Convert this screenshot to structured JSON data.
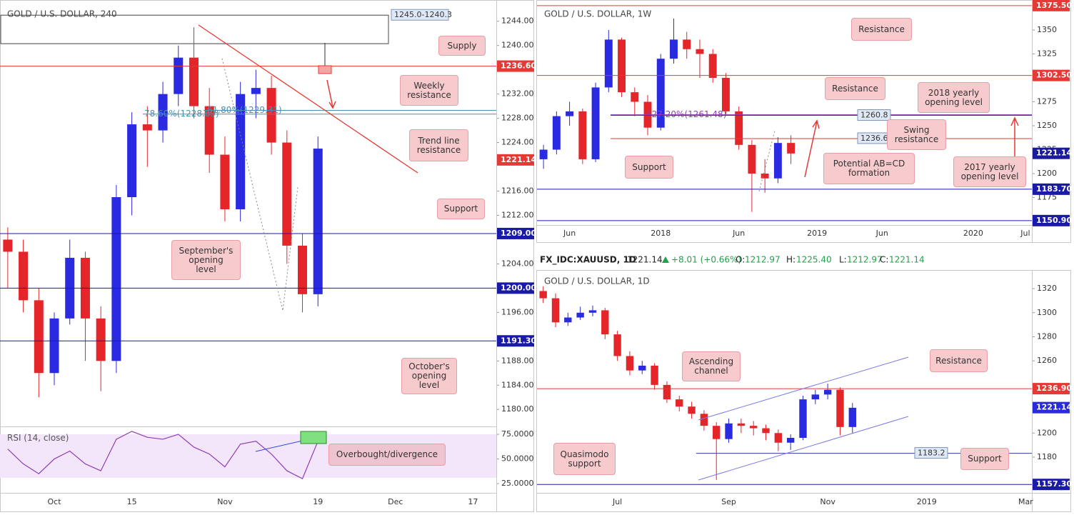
{
  "chart_data": [
    {
      "type": "candlestick",
      "title": "GOLD / U.S. DOLLAR, 240",
      "categories": [
        null,
        null,
        null,
        "Oct",
        null,
        null,
        null,
        null,
        "15",
        null,
        null,
        null,
        null,
        null,
        "Nov",
        null,
        null,
        null,
        null,
        null,
        "19",
        null,
        null,
        null,
        null,
        "Dec",
        null,
        null,
        null,
        null,
        "17",
        null
      ],
      "open": [
        1208,
        1206,
        1198,
        1186,
        1195,
        1205,
        1195,
        1188,
        1215,
        1227,
        1226,
        1232,
        1238,
        1230,
        1222,
        1213,
        1232,
        1233,
        1224,
        1207,
        1199,
        null,
        null,
        null,
        null,
        null,
        null,
        null,
        null,
        null,
        null,
        null
      ],
      "high": [
        1210,
        1208,
        1200,
        1196,
        1208,
        1206,
        1197,
        1217,
        1229,
        1230,
        1234,
        1240,
        1243,
        1233,
        1225,
        1234,
        1236,
        1235,
        1226,
        1209,
        1225,
        null,
        null,
        null,
        null,
        null,
        null,
        null,
        null,
        null,
        null,
        null
      ],
      "low": [
        1200,
        1196,
        1182,
        1184,
        1194,
        1188,
        1183,
        1186,
        1212,
        1220,
        1224,
        1230,
        1228,
        1219,
        1211,
        1211,
        1228,
        1222,
        1204,
        1196,
        1197,
        null,
        null,
        null,
        null,
        null,
        null,
        null,
        null,
        null,
        null,
        null
      ],
      "close": [
        1206,
        1198,
        1186,
        1195,
        1205,
        1195,
        1188,
        1215,
        1227,
        1226,
        1232,
        1238,
        1230,
        1222,
        1213,
        1232,
        1233,
        1224,
        1207,
        1199,
        1223,
        null,
        null,
        null,
        null,
        null,
        null,
        null,
        null,
        null,
        null,
        null
      ],
      "up_color": "#2a2ae0",
      "down_color": "#e4262b",
      "ylim": [
        1177.2,
        1247.5
      ],
      "yticks": [
        {
          "value": 1180,
          "label": "1180.00"
        },
        {
          "value": 1184,
          "label": "1184.00"
        },
        {
          "value": 1188,
          "label": "1188.00"
        },
        {
          "value": 1196,
          "label": "1196.00"
        },
        {
          "value": 1204,
          "label": "1204.00"
        },
        {
          "value": 1212,
          "label": "1212.00"
        },
        {
          "value": 1216,
          "label": "1216.00"
        },
        {
          "value": 1224,
          "label": "1224.00"
        },
        {
          "value": 1228,
          "label": "1228.00"
        },
        {
          "value": 1232,
          "label": "1232.00"
        },
        {
          "value": 1240,
          "label": "1240.00"
        },
        {
          "value": 1244,
          "label": "1244.00"
        }
      ],
      "zone": {
        "low": 1240.3,
        "high": 1245.0,
        "label": "1245.0-1240.3"
      },
      "levels": [
        {
          "value": 1236.6,
          "label": "1236.60",
          "color": "#e53935",
          "tag": "axis",
          "line": true
        },
        {
          "value": 1228.69,
          "label": "78.60%(1228.69)",
          "color": "#4a8fb0",
          "tag": "inline",
          "line": true
        },
        {
          "value": 1229.31,
          "label": "61.80%(1229.31)",
          "color": "#4a8fb0",
          "tag": "inline",
          "line": true
        },
        {
          "value": 1221.14,
          "label": "1221.14",
          "color": "#e53935",
          "tag": "axis",
          "line": false
        },
        {
          "value": 1209,
          "label": "1209.00",
          "color": "#1a1aa8",
          "tag": "axis",
          "line": true
        },
        {
          "value": 1200,
          "label": "1200.00",
          "color": "#1a1aa8",
          "tag": "axis",
          "line": true
        },
        {
          "value": 1191.3,
          "label": "1191.30",
          "color": "#1a1aa8",
          "tag": "axis",
          "line": true
        }
      ],
      "annotations": [
        "Supply",
        "Weekly resistance",
        "Trend line resistance",
        "Support",
        "September's opening level",
        "October's opening level",
        "Overbought/divergence"
      ],
      "rsi": {
        "label": "RSI (14, close)",
        "color": "#8e3fb5",
        "values": [
          60,
          45,
          35,
          50,
          58,
          45,
          38,
          70,
          78,
          72,
          70,
          75,
          62,
          55,
          42,
          65,
          68,
          55,
          38,
          30,
          68,
          null,
          null,
          null,
          null,
          null,
          null,
          null,
          null,
          null,
          null,
          null
        ],
        "ylim": [
          15.6,
          83
        ],
        "yticks": [
          {
            "value": 75,
            "label": "75.0000"
          },
          {
            "value": 50,
            "label": "50.0000"
          },
          {
            "value": 25,
            "label": "25.0000"
          }
        ]
      }
    },
    {
      "type": "candlestick",
      "title": "GOLD / U.S. DOLLAR, 1W",
      "categories": [
        null,
        null,
        "Jun",
        null,
        null,
        null,
        null,
        null,
        null,
        "2018",
        null,
        null,
        null,
        null,
        null,
        "Jun",
        null,
        null,
        null,
        null,
        null,
        "2019",
        null,
        null,
        null,
        null,
        "Jun",
        null,
        null,
        null,
        null,
        null,
        null,
        "2020",
        null,
        null,
        null,
        "Jul"
      ],
      "open": [
        1215,
        1225,
        1260,
        1265,
        1215,
        1290,
        1340,
        1285,
        1275,
        1248,
        1320,
        1340,
        1330,
        1325,
        1300,
        1265,
        1230,
        1200,
        1195,
        1232,
        null,
        null,
        null,
        null,
        null,
        null,
        null,
        null,
        null,
        null,
        null,
        null,
        null,
        null,
        null,
        null,
        null,
        null
      ],
      "high": [
        1230,
        1265,
        1275,
        1268,
        1295,
        1350,
        1342,
        1290,
        1282,
        1325,
        1362,
        1348,
        1340,
        1330,
        1305,
        1270,
        1235,
        1215,
        1238,
        1240,
        null,
        null,
        null,
        null,
        null,
        null,
        null,
        null,
        null,
        null,
        null,
        null,
        null,
        null,
        null,
        null,
        null,
        null
      ],
      "low": [
        1205,
        1220,
        1250,
        1210,
        1212,
        1285,
        1280,
        1260,
        1240,
        1245,
        1315,
        1320,
        1300,
        1295,
        1262,
        1225,
        1160,
        1180,
        1190,
        1210,
        null,
        null,
        null,
        null,
        null,
        null,
        null,
        null,
        null,
        null,
        null,
        null,
        null,
        null,
        null,
        null,
        null,
        null
      ],
      "close": [
        1225,
        1260,
        1265,
        1215,
        1290,
        1340,
        1285,
        1275,
        1248,
        1320,
        1340,
        1330,
        1325,
        1300,
        1265,
        1230,
        1200,
        1195,
        1232,
        1221,
        null,
        null,
        null,
        null,
        null,
        null,
        null,
        null,
        null,
        null,
        null,
        null,
        null,
        null,
        null,
        null,
        null,
        null
      ],
      "up_color": "#2a2ae0",
      "down_color": "#e4262b",
      "ylim": [
        1146.3,
        1377.6
      ],
      "yticks": [
        1175,
        1200,
        1225,
        1250,
        1275,
        1325,
        1350
      ],
      "levels": [
        {
          "value": 1375.5,
          "label": "1375.50",
          "color": "#e53935",
          "tag": "axis",
          "line": true
        },
        {
          "value": 1302.5,
          "label": "1302.50",
          "color": "#e53935",
          "tag": "axis",
          "line": true
        },
        {
          "value": 1261.48,
          "label": "127.20%(1261.48)",
          "color": "#8e3fb5",
          "tag": "inline",
          "line": true
        },
        {
          "value": 1260.8,
          "label": "1260.8",
          "color": "#2f3f9e",
          "tag": "inline",
          "line": true
        },
        {
          "value": 1236.6,
          "label": "1236.6",
          "color": "#e53935",
          "tag": "inline",
          "line": true
        },
        {
          "value": 1221.14,
          "label": "1221.14",
          "color": "#1a1a9e",
          "tag": "axis",
          "line": false
        },
        {
          "value": 1183.7,
          "label": "1183.70",
          "color": "#1a1aa8",
          "tag": "axis",
          "line": true
        },
        {
          "value": 1150.9,
          "label": "1150.90",
          "color": "#1a1aa8",
          "tag": "axis",
          "line": true
        }
      ],
      "annotations": [
        "Resistance",
        "Resistance",
        "2018 yearly opening level",
        "Swing resistance",
        "Potential AB=CD formation",
        "Support",
        "2017 yearly opening level"
      ]
    },
    {
      "type": "candlestick",
      "title": "GOLD / U.S. DOLLAR, 1D",
      "info": {
        "symbol": "FX_IDC:XAUUSD, 1D",
        "last": "1221.14",
        "change": "+8.01 (+0.66%)",
        "o_label": "O:",
        "o": "1212.97",
        "h_label": "H:",
        "h": "1225.40",
        "l_label": "L:",
        "l": "1212.97",
        "c_label": "C:",
        "c": "1221.14"
      },
      "categories": [
        null,
        null,
        null,
        null,
        null,
        null,
        "Jul",
        null,
        null,
        null,
        null,
        null,
        null,
        null,
        null,
        "Sep",
        null,
        null,
        null,
        null,
        null,
        null,
        null,
        "Nov",
        null,
        null,
        null,
        null,
        null,
        null,
        null,
        "2019",
        null,
        null,
        null,
        null,
        null,
        null,
        null,
        "Mar"
      ],
      "open": [
        1318,
        1312,
        1292,
        1296,
        1300,
        1302,
        1282,
        1264,
        1252,
        1256,
        1240,
        1228,
        1222,
        1216,
        1206,
        1195,
        1208,
        1206,
        1204,
        1200,
        1192,
        1196,
        1228,
        1232,
        1236,
        1205,
        null,
        null,
        null,
        null,
        null,
        null,
        null,
        null,
        null,
        null,
        null,
        null,
        null,
        null
      ],
      "high": [
        1322,
        1316,
        1300,
        1305,
        1306,
        1304,
        1285,
        1268,
        1260,
        1258,
        1243,
        1231,
        1226,
        1219,
        1209,
        1212,
        1212,
        1210,
        1207,
        1203,
        1199,
        1231,
        1236,
        1241,
        1238,
        1225,
        null,
        null,
        null,
        null,
        null,
        null,
        null,
        null,
        null,
        null,
        null,
        null,
        null,
        null
      ],
      "low": [
        1308,
        1288,
        1289,
        1294,
        1297,
        1278,
        1260,
        1248,
        1249,
        1236,
        1225,
        1218,
        1212,
        1202,
        1161,
        1192,
        1200,
        1198,
        1194,
        1185,
        1186,
        1194,
        1224,
        1228,
        1198,
        1200,
        null,
        null,
        null,
        null,
        null,
        null,
        null,
        null,
        null,
        null,
        null,
        null,
        null,
        null
      ],
      "close": [
        1312,
        1292,
        1296,
        1300,
        1302,
        1282,
        1264,
        1252,
        1256,
        1240,
        1228,
        1222,
        1216,
        1206,
        1195,
        1208,
        1206,
        1204,
        1200,
        1192,
        1196,
        1228,
        1232,
        1236,
        1205,
        1221,
        null,
        null,
        null,
        null,
        null,
        null,
        null,
        null,
        null,
        null,
        null,
        null,
        null,
        null
      ],
      "up_color": "#2a2ae0",
      "down_color": "#e4262b",
      "ylim": [
        1150.3,
        1334.3
      ],
      "yticks": [
        1180,
        1200,
        1260,
        1280,
        1300,
        1320
      ],
      "levels": [
        {
          "value": 1236.9,
          "label": "1236.90",
          "color": "#e53935",
          "tag": "axis",
          "line": true
        },
        {
          "value": 1221.14,
          "label": "1221.14",
          "color": "#2a2ae0",
          "tag": "axis",
          "line": false
        },
        {
          "value": 1183.2,
          "label": "1183.2",
          "color": "#2f3f9e",
          "tag": "inline",
          "line": true
        },
        {
          "value": 1157.3,
          "label": "1157.30",
          "color": "#1a1aa8",
          "tag": "axis",
          "line": true
        }
      ],
      "annotations": [
        "Ascending channel",
        "Resistance",
        "Support",
        "Quasimodo support"
      ]
    }
  ]
}
